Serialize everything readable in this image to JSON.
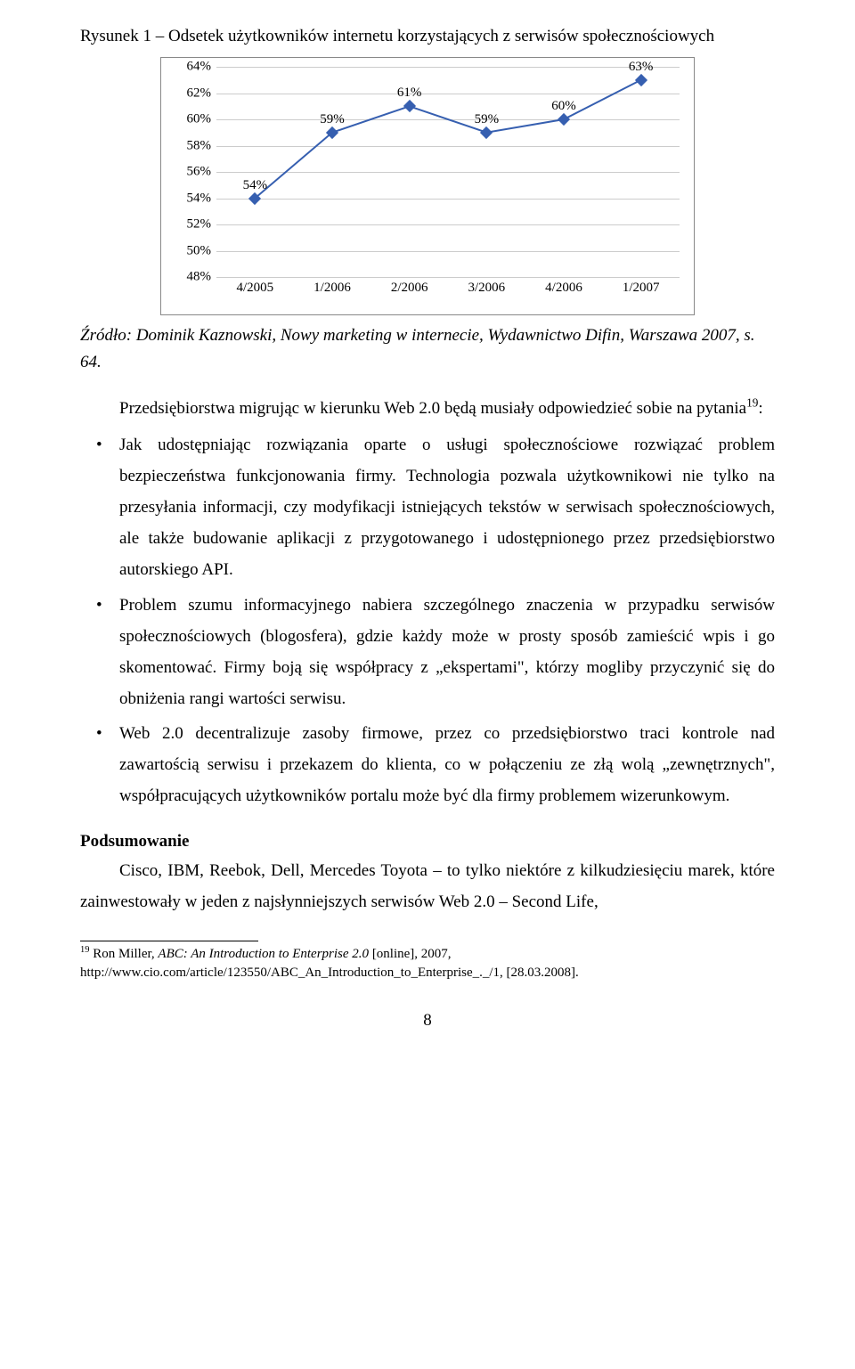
{
  "figure_title": "Rysunek 1 – Odsetek użytkowników internetu korzystających z serwisów społecznościowych",
  "chart": {
    "type": "line",
    "categories": [
      "4/2005",
      "1/2006",
      "2/2006",
      "3/2006",
      "4/2006",
      "1/2007"
    ],
    "values": [
      54,
      59,
      61,
      59,
      60,
      63
    ],
    "ylim": [
      48,
      64
    ],
    "ytick_step": 2,
    "line_color": "#365fb0",
    "marker_color": "#365fb0",
    "marker_shape": "diamond",
    "marker_size": 10,
    "line_width": 2,
    "background_color": "#ffffff",
    "grid_color": "#cccccc",
    "label_fontsize": 15,
    "label_color": "#000000"
  },
  "source_line": "Źródło: Dominik Kaznowski, Nowy marketing w internecie, Wydawnictwo Difin, Warszawa 2007, s. 64.",
  "intro_text": "Przedsiębiorstwa migrując w kierunku Web 2.0 będą musiały odpowiedzieć sobie na pytania",
  "intro_sup": "19",
  "bullets": [
    "Jak udostępniając rozwiązania oparte o usługi społecznościowe rozwiązać problem bezpieczeństwa funkcjonowania firmy. Technologia pozwala użytkownikowi nie tylko na przesyłania informacji, czy modyfikacji istniejących tekstów w serwisach społecznościowych, ale także budowanie aplikacji z przygotowanego i udostępnionego przez przedsiębiorstwo autorskiego API.",
    "Problem szumu informacyjnego nabiera szczególnego znaczenia w przypadku serwisów społecznościowych (blogosfera), gdzie każdy może w prosty sposób zamieścić wpis i go skomentować. Firmy boją się współpracy z „ekspertami\", którzy mogliby przyczynić się do obniżenia rangi wartości serwisu.",
    "Web 2.0 decentralizuje zasoby firmowe, przez co przedsiębiorstwo traci kontrole nad zawartością serwisu i przekazem do klienta, co w połączeniu ze złą wolą „zewnętrznych\", współpracujących użytkowników portalu może być dla firmy problemem wizerunkowym."
  ],
  "summary_head": "Podsumowanie",
  "summary_text": "Cisco, IBM, Reebok, Dell, Mercedes Toyota – to tylko niektóre z kilkudziesięciu marek, które zainwestowały w jeden z najsłynniejszych serwisów Web 2.0 – Second Life,",
  "footnote_num": "19",
  "footnote_text_italic": "ABC: An Introduction to Enterprise 2.0",
  "footnote_prefix": " Ron Miller, ",
  "footnote_suffix": " [online], 2007, http://www.cio.com/article/123550/ABC_An_Introduction_to_Enterprise_._/1, [28.03.2008].",
  "page_number": "8"
}
